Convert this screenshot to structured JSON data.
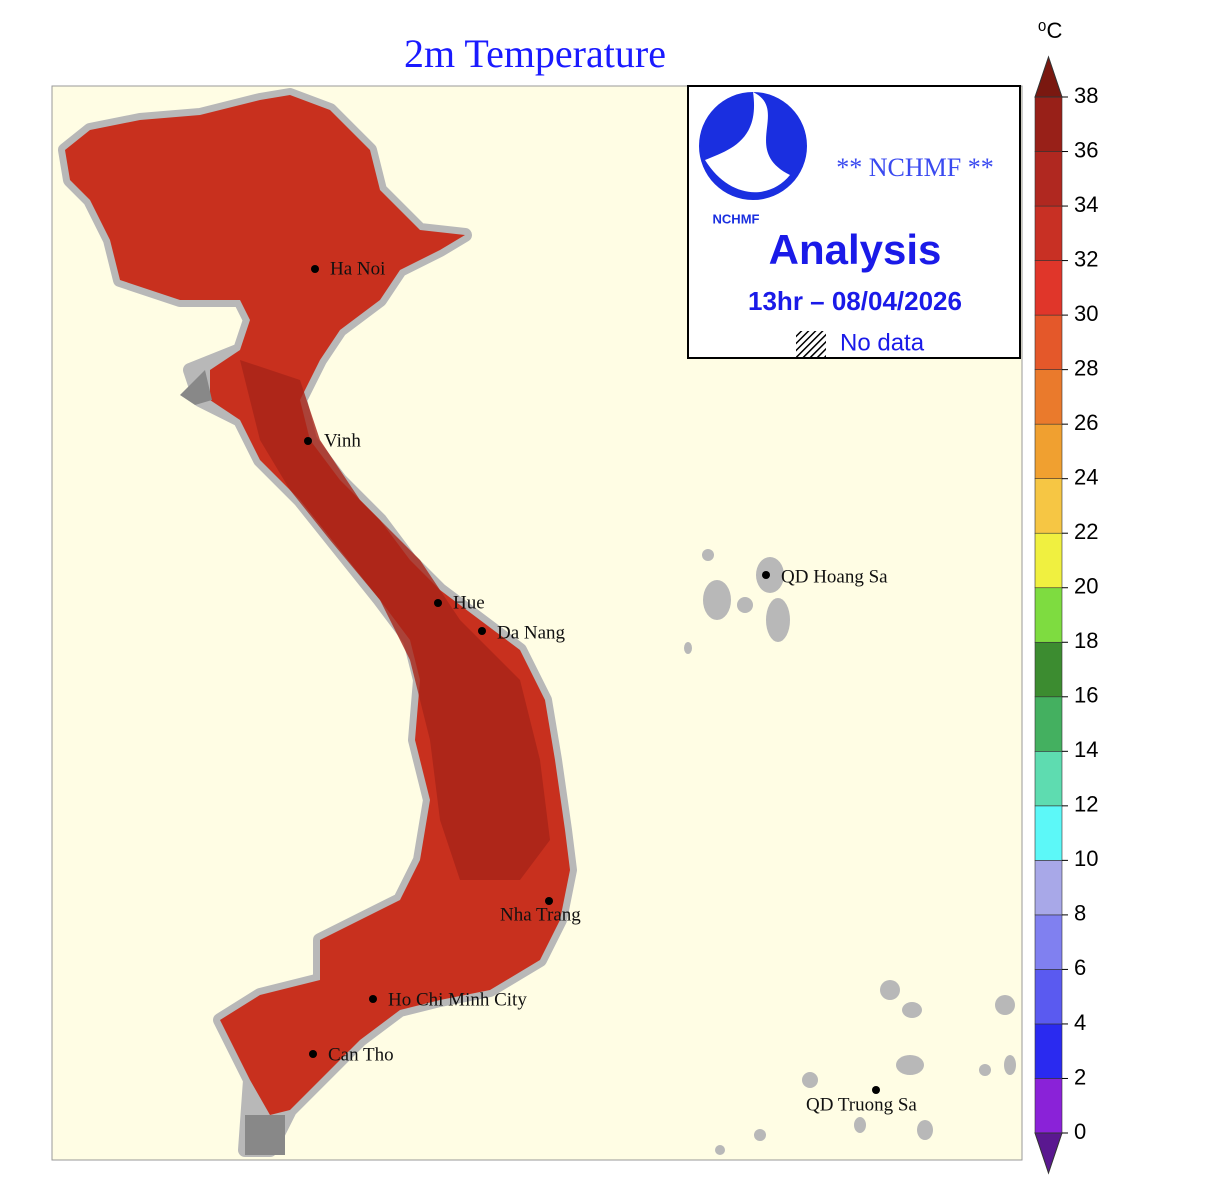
{
  "title": "2m Temperature",
  "legend": {
    "header": "** NCHMF **",
    "logo_text": "NCHMF",
    "product": "Analysis",
    "time": "13hr – 08/04/2026",
    "no_data": "No data"
  },
  "cities": [
    "Ha Noi",
    "Vinh",
    "Hue",
    "Da Nang",
    "Nha Trang",
    "Ho Chi Minh City",
    "Can Tho",
    "QD Hoang Sa",
    "QD Truong Sa"
  ],
  "colorbar": {
    "unit": "⁰C",
    "ticks": [
      0,
      2,
      4,
      6,
      8,
      10,
      12,
      14,
      16,
      18,
      20,
      22,
      24,
      26,
      28,
      30,
      32,
      34,
      36,
      38
    ],
    "colors": [
      "#8a22d8",
      "#2a2af0",
      "#5a5af0",
      "#8080f0",
      "#a8a8e8",
      "#5cf8f8",
      "#5edcb0",
      "#44b060",
      "#3c8c30",
      "#7edc40",
      "#f0f040",
      "#f6c644",
      "#f0a030",
      "#ea7a2c",
      "#e4582a",
      "#e0362a",
      "#c83024",
      "#b02820",
      "#982018"
    ],
    "under_color": "#5a1890",
    "over_color": "#7a1810"
  }
}
